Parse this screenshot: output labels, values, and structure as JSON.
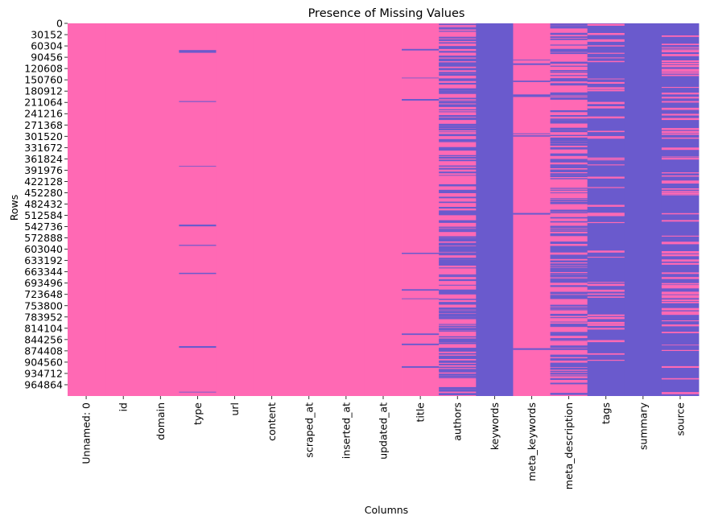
{
  "chart_data": {
    "type": "heatmap",
    "title": "Presence of Missing Values",
    "xlabel": "Columns",
    "ylabel": "Rows",
    "columns": [
      "Unnamed: 0",
      "id",
      "domain",
      "type",
      "url",
      "content",
      "scraped_at",
      "inserted_at",
      "updated_at",
      "title",
      "authors",
      "keywords",
      "meta_keywords",
      "meta_description",
      "tags",
      "summary",
      "source"
    ],
    "y_ticks": [
      0,
      30152,
      60304,
      90456,
      120608,
      150760,
      180912,
      211064,
      241216,
      271368,
      301520,
      331672,
      361824,
      391976,
      422128,
      452280,
      482432,
      512584,
      542736,
      572888,
      603040,
      633192,
      663344,
      693496,
      723648,
      753800,
      783952,
      814104,
      844256,
      874408,
      904560,
      934712,
      964864
    ],
    "y_range": [
      0,
      995000
    ],
    "colors": {
      "present": "#ff69b4",
      "missing": "#6a5acd"
    },
    "missing_pattern": {
      "Unnamed: 0": "none",
      "id": "none",
      "domain": "none",
      "type": "few",
      "url": "none",
      "content": "none",
      "scraped_at": "none",
      "inserted_at": "none",
      "updated_at": "none",
      "title": "few",
      "authors": "partial",
      "keywords": "all",
      "meta_keywords": "few",
      "meta_description": "partial",
      "tags": "mostly",
      "summary": "all",
      "source": "mostly"
    }
  }
}
